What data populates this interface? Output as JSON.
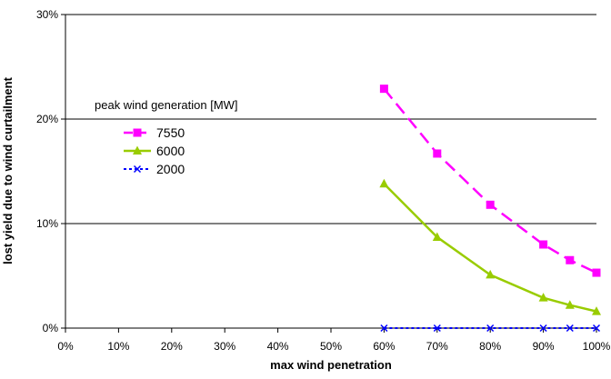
{
  "chart_data": {
    "type": "line",
    "title": "",
    "xlabel": "max wind penetration",
    "ylabel": "lost yield due to wind curtailment",
    "legend_title": "peak wind generation [MW]",
    "legend_position": "upper-left",
    "grid": "horizontal",
    "xlim": [
      0,
      100
    ],
    "ylim": [
      0,
      30
    ],
    "x_ticks": [
      "0%",
      "10%",
      "20%",
      "30%",
      "40%",
      "50%",
      "60%",
      "70%",
      "80%",
      "90%",
      "100%"
    ],
    "y_ticks": [
      "0%",
      "10%",
      "20%",
      "30%"
    ],
    "series": [
      {
        "name": "7550",
        "color": "#ff00ff",
        "line_style": "dashed",
        "marker": "square",
        "x": [
          60,
          70,
          80,
          90,
          95,
          100
        ],
        "y": [
          22.9,
          16.7,
          11.8,
          8.0,
          6.5,
          5.3
        ]
      },
      {
        "name": "6000",
        "color": "#99cc00",
        "line_style": "solid",
        "marker": "triangle",
        "x": [
          60,
          70,
          80,
          90,
          95,
          100
        ],
        "y": [
          13.8,
          8.7,
          5.1,
          2.9,
          2.2,
          1.6
        ]
      },
      {
        "name": "2000",
        "color": "#0000ff",
        "line_style": "dotted",
        "marker": "x",
        "x": [
          60,
          70,
          80,
          90,
          95,
          100
        ],
        "y": [
          0,
          0,
          0,
          0,
          0,
          0
        ]
      }
    ]
  }
}
